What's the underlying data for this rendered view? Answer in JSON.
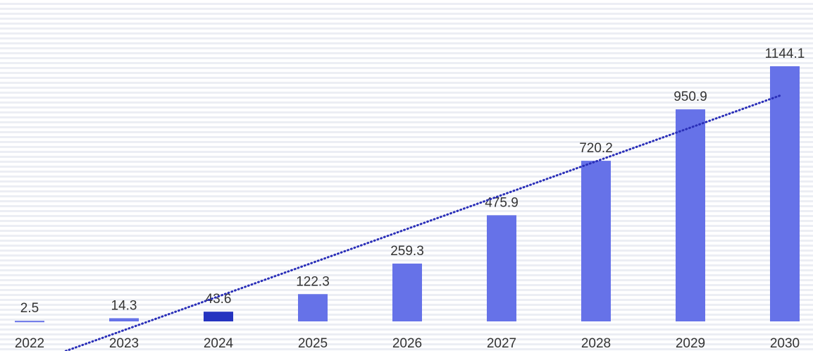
{
  "chart_data": {
    "type": "bar",
    "categories": [
      "2022",
      "2023",
      "2024",
      "2025",
      "2026",
      "2027",
      "2028",
      "2029",
      "2030"
    ],
    "values": [
      2.5,
      14.3,
      43.6,
      122.3,
      259.3,
      475.9,
      720.2,
      950.9,
      1144.1
    ],
    "colors": [
      "#6672e8",
      "#6672e8",
      "#2433c0",
      "#6672e8",
      "#6672e8",
      "#6672e8",
      "#6672e8",
      "#6672e8",
      "#6672e8"
    ],
    "trendline": true,
    "trendline_color": "#2a2fb8"
  }
}
